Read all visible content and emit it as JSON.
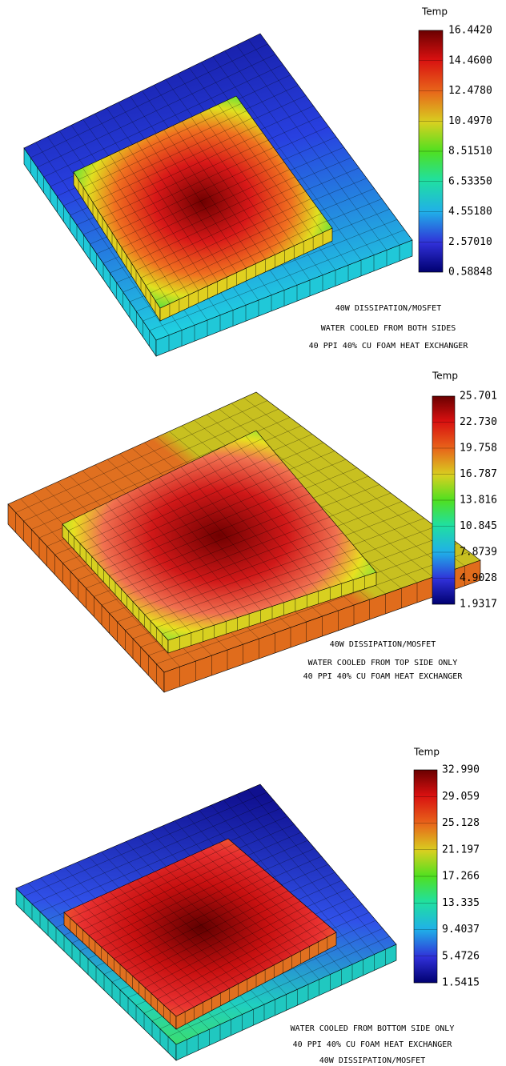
{
  "panels": [
    {
      "legend_title": "Temp",
      "ticks": [
        "16.4420",
        "14.4600",
        "12.4780",
        "10.4970",
        "8.51510",
        "6.53350",
        "4.55180",
        "2.57010",
        "0.58848"
      ],
      "captions": [
        "40W DISSIPATION/MOSFET",
        "WATER COOLED FROM BOTH SIDES",
        "40 PPI 40% CU FOAM HEAT EXCHANGER"
      ]
    },
    {
      "legend_title": "Temp",
      "ticks": [
        "25.701",
        "22.730",
        "19.758",
        "16.787",
        "13.816",
        "10.845",
        "7.8739",
        "4.9028",
        "1.9317"
      ],
      "captions": [
        "40W DISSIPATION/MOSFET",
        "WATER COOLED FROM TOP SIDE ONLY",
        "40 PPI 40% CU FOAM HEAT EXCHANGER"
      ]
    },
    {
      "legend_title": "Temp",
      "ticks": [
        "32.990",
        "29.059",
        "25.128",
        "21.197",
        "17.266",
        "13.335",
        "9.4037",
        "5.4726",
        "1.5415"
      ],
      "captions": [
        "WATER COOLED FROM BOTTOM SIDE ONLY",
        "40 PPI 40% CU FOAM HEAT EXCHANGER",
        "40W DISSIPATION/MOSFET"
      ]
    }
  ]
}
